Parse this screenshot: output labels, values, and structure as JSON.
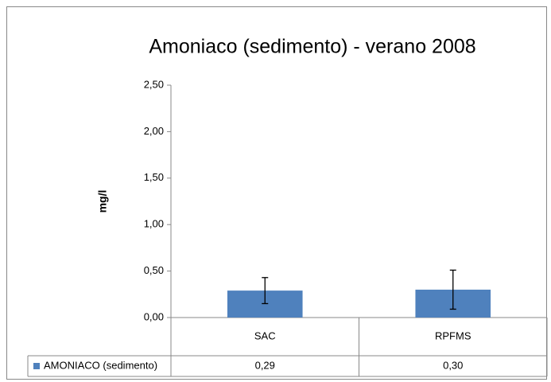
{
  "chart_data": {
    "type": "bar",
    "title": "Amoniaco (sedimento) - verano 2008",
    "y_label": "mg/l",
    "categories": [
      "SAC",
      "RPFMS"
    ],
    "series": [
      {
        "name": "AMONIACO (sedimento)",
        "color": "#4f81bd",
        "values": [
          0.29,
          0.3
        ],
        "value_labels": [
          "0,29",
          "0,30"
        ],
        "errors": [
          0.14,
          0.21
        ]
      }
    ],
    "ylim": [
      0,
      2.5
    ],
    "yticks": [
      {
        "value": 0,
        "label": "0,00"
      },
      {
        "value": 0.5,
        "label": "0,50"
      },
      {
        "value": 1,
        "label": "1,00"
      },
      {
        "value": 1.5,
        "label": "1,50"
      },
      {
        "value": 2,
        "label": "2,00"
      },
      {
        "value": 2.5,
        "label": "2,50"
      }
    ],
    "grid": false
  }
}
